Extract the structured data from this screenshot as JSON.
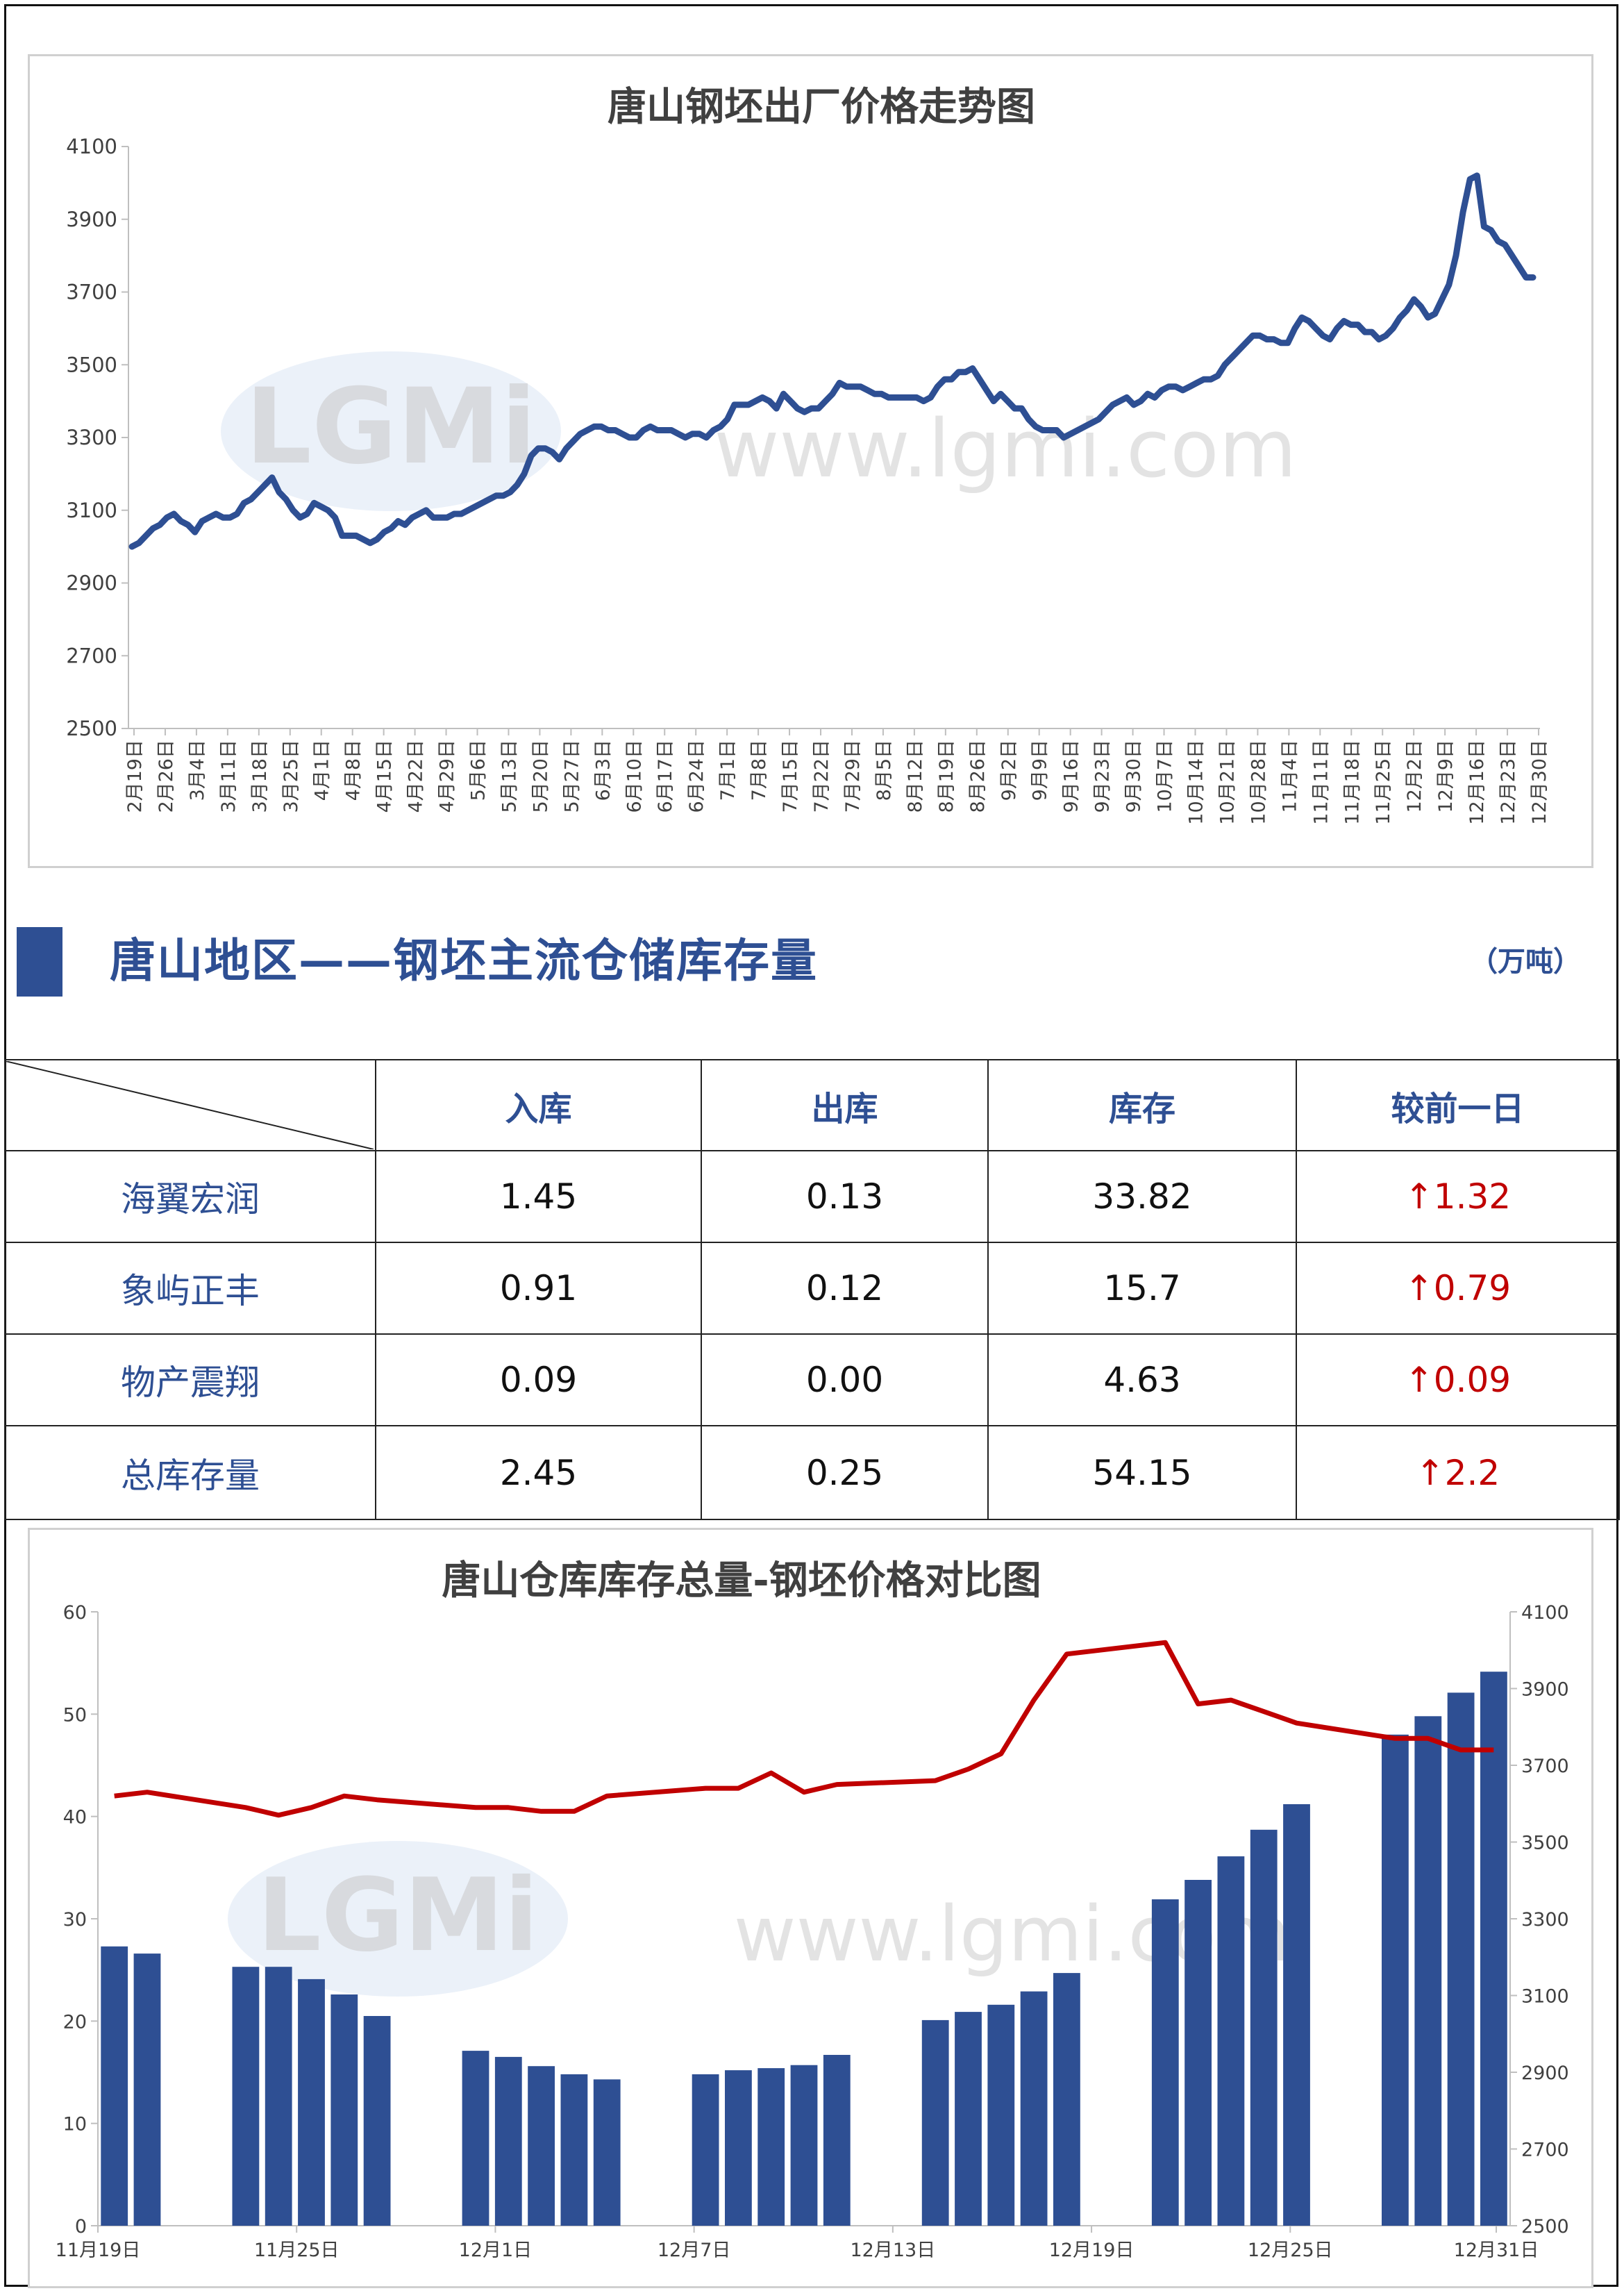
{
  "chart_data": [
    {
      "type": "line",
      "title": "唐山钢坯出厂价格走势图",
      "ylim": [
        2500,
        4100
      ],
      "yticks": [
        2500,
        2700,
        2900,
        3100,
        3300,
        3500,
        3700,
        3900,
        4100
      ],
      "xtick_labels": [
        "2月19日",
        "2月26日",
        "3月4日",
        "3月11日",
        "3月18日",
        "3月25日",
        "4月1日",
        "4月8日",
        "4月15日",
        "4月22日",
        "4月29日",
        "5月6日",
        "5月13日",
        "5月20日",
        "5月27日",
        "6月3日",
        "6月10日",
        "6月17日",
        "6月24日",
        "7月1日",
        "7月8日",
        "7月15日",
        "7月22日",
        "7月29日",
        "8月5日",
        "8月12日",
        "8月19日",
        "8月26日",
        "9月2日",
        "9月9日",
        "9月16日",
        "9月23日",
        "9月30日",
        "10月7日",
        "10月14日",
        "10月21日",
        "10月28日",
        "11月4日",
        "11月11日",
        "11月18日",
        "11月25日",
        "12月2日",
        "12月9日",
        "12月16日",
        "12月23日",
        "12月30日"
      ],
      "color": "#2e4f93",
      "series": [
        {
          "name": "",
          "values": [
            3000,
            3010,
            3030,
            3050,
            3060,
            3080,
            3090,
            3070,
            3060,
            3040,
            3070,
            3080,
            3090,
            3080,
            3080,
            3090,
            3120,
            3130,
            3150,
            3170,
            3190,
            3150,
            3130,
            3100,
            3080,
            3090,
            3120,
            3110,
            3100,
            3080,
            3030,
            3030,
            3030,
            3020,
            3010,
            3020,
            3040,
            3050,
            3070,
            3060,
            3080,
            3090,
            3100,
            3080,
            3080,
            3080,
            3090,
            3090,
            3100,
            3110,
            3120,
            3130,
            3140,
            3140,
            3150,
            3170,
            3200,
            3250,
            3270,
            3270,
            3260,
            3240,
            3270,
            3290,
            3310,
            3320,
            3330,
            3330,
            3320,
            3320,
            3310,
            3300,
            3300,
            3320,
            3330,
            3320,
            3320,
            3320,
            3310,
            3300,
            3310,
            3310,
            3300,
            3320,
            3330,
            3350,
            3390,
            3390,
            3390,
            3400,
            3410,
            3400,
            3380,
            3420,
            3400,
            3380,
            3370,
            3380,
            3380,
            3400,
            3420,
            3450,
            3440,
            3440,
            3440,
            3430,
            3420,
            3420,
            3410,
            3410,
            3410,
            3410,
            3410,
            3400,
            3410,
            3440,
            3460,
            3460,
            3480,
            3480,
            3490,
            3460,
            3430,
            3400,
            3420,
            3400,
            3380,
            3380,
            3350,
            3330,
            3320,
            3320,
            3320,
            3300,
            3310,
            3320,
            3330,
            3340,
            3350,
            3370,
            3390,
            3400,
            3410,
            3390,
            3400,
            3420,
            3410,
            3430,
            3440,
            3440,
            3430,
            3440,
            3450,
            3460,
            3460,
            3470,
            3500,
            3520,
            3540,
            3560,
            3580,
            3580,
            3570,
            3570,
            3560,
            3560,
            3600,
            3630,
            3620,
            3600,
            3580,
            3570,
            3600,
            3620,
            3610,
            3610,
            3590,
            3590,
            3570,
            3580,
            3600,
            3630,
            3650,
            3680,
            3660,
            3630,
            3640,
            3680,
            3720,
            3800,
            3920,
            4010,
            4020,
            3880,
            3870,
            3840,
            3830,
            3800,
            3770,
            3740,
            3740
          ]
        }
      ]
    },
    {
      "type": "bar+line",
      "title": "唐山仓库库存总量-钢坯价格对比图",
      "ylim_left": [
        0,
        60
      ],
      "yticks_left": [
        0,
        10,
        20,
        30,
        40,
        50,
        60
      ],
      "ylim_right": [
        2500,
        4100
      ],
      "yticks_right": [
        2500,
        2700,
        2900,
        3100,
        3300,
        3500,
        3700,
        3900,
        4100
      ],
      "xtick_labels": [
        "11月19日",
        "11月25日",
        "12月1日",
        "12月7日",
        "12月13日",
        "12月19日",
        "12月25日",
        "12月31日"
      ],
      "bar_color": "#2e4f93",
      "line_color": "#c00000",
      "series": [
        {
          "name": "",
          "type": "bar",
          "axis": "left",
          "values": [
            27.3,
            26.6,
            25.3,
            25.3,
            24.1,
            22.6,
            20.5,
            17.1,
            16.5,
            15.6,
            14.8,
            14.3,
            14.8,
            15.2,
            15.4,
            15.7,
            16.7,
            20.1,
            20.9,
            21.6,
            22.9,
            24.7,
            31.9,
            33.8,
            36.1,
            38.7,
            41.2,
            48.0,
            49.8,
            52.1,
            54.15
          ]
        },
        {
          "name": "",
          "type": "line",
          "axis": "right",
          "values": [
            3620,
            3630,
            3590,
            3570,
            3590,
            3620,
            3610,
            3590,
            3590,
            3580,
            3580,
            3620,
            3640,
            3640,
            3680,
            3630,
            3650,
            3660,
            3690,
            3730,
            3870,
            3990,
            4020,
            3860,
            3870,
            3840,
            3810,
            3770,
            3770,
            3740,
            3740
          ]
        }
      ]
    }
  ],
  "section": {
    "title": "唐山地区——钢坯主流仓储库存量",
    "unit": "（万吨）"
  },
  "table": {
    "headers": [
      "入库",
      "出库",
      "库存",
      "较前一日"
    ],
    "rows": [
      {
        "name": "海翼宏润",
        "in": "1.45",
        "out": "0.13",
        "stock": "33.82",
        "delta": "↑1.32"
      },
      {
        "name": "象屿正丰",
        "in": "0.91",
        "out": "0.12",
        "stock": "15.7",
        "delta": "↑0.79"
      },
      {
        "name": "物产震翔",
        "in": "0.09",
        "out": "0.00",
        "stock": "4.63",
        "delta": "↑0.09"
      },
      {
        "name": "总库存量",
        "in": "2.45",
        "out": "0.25",
        "stock": "54.15",
        "delta": "↑2.2"
      }
    ]
  },
  "watermark": {
    "logo": "LGMi",
    "site": "www.lgmi.com"
  }
}
